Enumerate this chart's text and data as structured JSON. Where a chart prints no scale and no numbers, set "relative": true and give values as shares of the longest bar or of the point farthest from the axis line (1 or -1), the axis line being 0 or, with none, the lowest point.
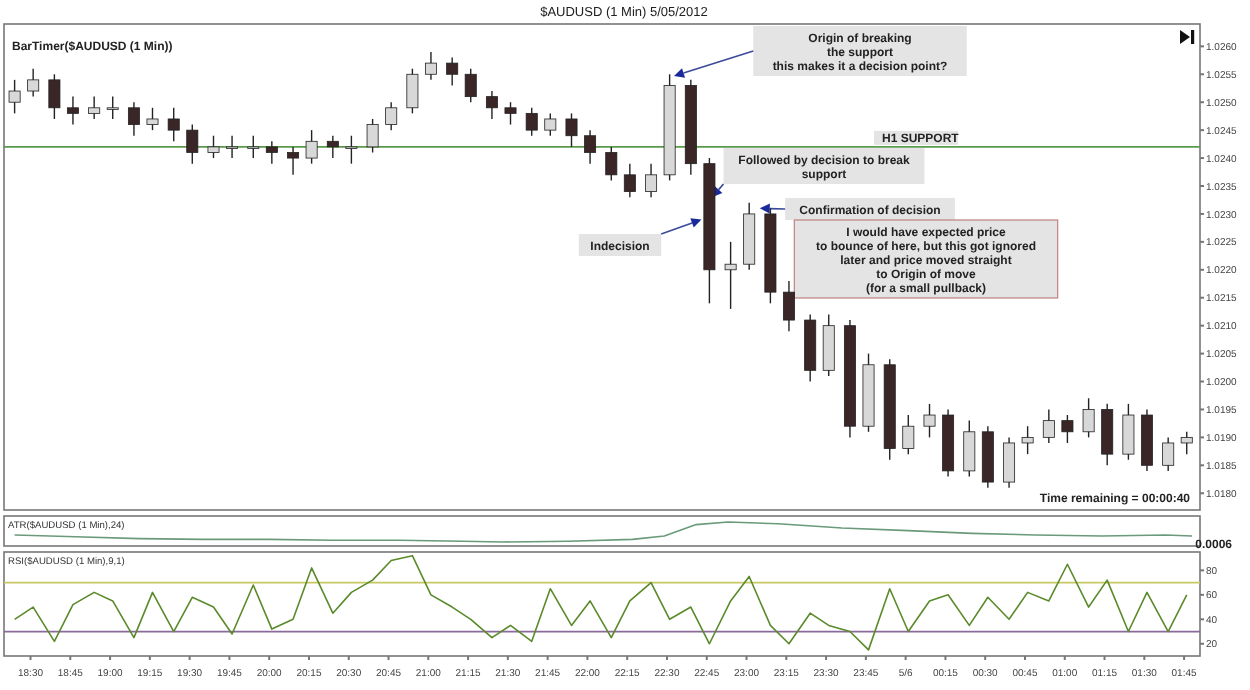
{
  "chart_data": [
    {
      "type": "candlestick",
      "title": "$AUDUSD (1 Min)  5/05/2012",
      "x": [
        "2012-05-05T18:24",
        "2012-05-05T18:31",
        "2012-05-05T18:39",
        "2012-05-05T18:46",
        "2012-05-05T18:54",
        "2012-05-05T19:01",
        "2012-05-05T19:09",
        "2012-05-05T19:16",
        "2012-05-05T19:24",
        "2012-05-05T19:31",
        "2012-05-05T19:39",
        "2012-05-05T19:46",
        "2012-05-05T19:54",
        "2012-05-05T20:01",
        "2012-05-05T20:09",
        "2012-05-05T20:16",
        "2012-05-05T20:24",
        "2012-05-05T20:31",
        "2012-05-05T20:39",
        "2012-05-05T20:46",
        "2012-05-05T20:54",
        "2012-05-05T21:01",
        "2012-05-05T21:09",
        "2012-05-05T21:16",
        "2012-05-05T21:24",
        "2012-05-05T21:31",
        "2012-05-05T21:39",
        "2012-05-05T21:46",
        "2012-05-05T21:54",
        "2012-05-05T22:01",
        "2012-05-05T22:09",
        "2012-05-05T22:16",
        "2012-05-05T22:24",
        "2012-05-05T22:31",
        "2012-05-05T22:39",
        "2012-05-05T22:46",
        "2012-05-05T22:54",
        "2012-05-05T23:01",
        "2012-05-05T23:09",
        "2012-05-05T23:16",
        "2012-05-05T23:24",
        "2012-05-05T23:31",
        "2012-05-05T23:39",
        "2012-05-05T23:46",
        "2012-05-05T23:54",
        "2012-05-06T00:01",
        "2012-05-06T00:09",
        "2012-05-06T00:16",
        "2012-05-06T00:24",
        "2012-05-06T00:31",
        "2012-05-06T00:39",
        "2012-05-06T00:46",
        "2012-05-06T00:54",
        "2012-05-06T01:01",
        "2012-05-06T01:09",
        "2012-05-06T01:16",
        "2012-05-06T01:24",
        "2012-05-06T01:31",
        "2012-05-06T01:39",
        "2012-05-06T01:46"
      ],
      "ohlc": [
        [
          1.025,
          1.0254,
          1.0248,
          1.0252
        ],
        [
          1.0252,
          1.0256,
          1.0251,
          1.0254
        ],
        [
          1.0254,
          1.0255,
          1.0247,
          1.0249
        ],
        [
          1.0249,
          1.0251,
          1.0246,
          1.0248
        ],
        [
          1.0248,
          1.0251,
          1.0247,
          1.0249
        ],
        [
          1.0249,
          1.0251,
          1.0247,
          1.0249
        ],
        [
          1.0249,
          1.025,
          1.0244,
          1.0246
        ],
        [
          1.0246,
          1.0249,
          1.0245,
          1.0247
        ],
        [
          1.0247,
          1.0249,
          1.0243,
          1.0245
        ],
        [
          1.0245,
          1.0246,
          1.0239,
          1.0241
        ],
        [
          1.0241,
          1.0244,
          1.024,
          1.0242
        ],
        [
          1.0242,
          1.0244,
          1.024,
          1.0242
        ],
        [
          1.0242,
          1.0244,
          1.024,
          1.0242
        ],
        [
          1.0242,
          1.0243,
          1.0239,
          1.0241
        ],
        [
          1.0241,
          1.0242,
          1.0237,
          1.024
        ],
        [
          1.024,
          1.0245,
          1.0239,
          1.0243
        ],
        [
          1.0243,
          1.0244,
          1.024,
          1.0242
        ],
        [
          1.0242,
          1.0244,
          1.0239,
          1.0242
        ],
        [
          1.0242,
          1.0247,
          1.0241,
          1.0246
        ],
        [
          1.0246,
          1.025,
          1.0245,
          1.0249
        ],
        [
          1.0249,
          1.0256,
          1.0248,
          1.0255
        ],
        [
          1.0255,
          1.0259,
          1.0254,
          1.0257
        ],
        [
          1.0257,
          1.0258,
          1.0253,
          1.0255
        ],
        [
          1.0255,
          1.0256,
          1.025,
          1.0251
        ],
        [
          1.0251,
          1.0252,
          1.0247,
          1.0249
        ],
        [
          1.0249,
          1.025,
          1.0246,
          1.0248
        ],
        [
          1.0248,
          1.0249,
          1.0244,
          1.0245
        ],
        [
          1.0245,
          1.0248,
          1.0244,
          1.0247
        ],
        [
          1.0247,
          1.0248,
          1.0242,
          1.0244
        ],
        [
          1.0244,
          1.0245,
          1.0239,
          1.0241
        ],
        [
          1.0241,
          1.0242,
          1.0236,
          1.0237
        ],
        [
          1.0237,
          1.0239,
          1.0233,
          1.0234
        ],
        [
          1.0234,
          1.0239,
          1.0233,
          1.0237
        ],
        [
          1.0237,
          1.0255,
          1.0236,
          1.0253
        ],
        [
          1.0253,
          1.0254,
          1.0237,
          1.0239
        ],
        [
          1.0239,
          1.024,
          1.0214,
          1.022
        ],
        [
          1.022,
          1.0225,
          1.0213,
          1.0221
        ],
        [
          1.0221,
          1.0232,
          1.022,
          1.023
        ],
        [
          1.023,
          1.0231,
          1.0214,
          1.0216
        ],
        [
          1.0216,
          1.0218,
          1.0209,
          1.0211
        ],
        [
          1.0211,
          1.0212,
          1.02,
          1.0202
        ],
        [
          1.0202,
          1.0212,
          1.0201,
          1.021
        ],
        [
          1.021,
          1.0211,
          1.019,
          1.0192
        ],
        [
          1.0192,
          1.0205,
          1.0191,
          1.0203
        ],
        [
          1.0203,
          1.0204,
          1.0186,
          1.0188
        ],
        [
          1.0188,
          1.0194,
          1.0187,
          1.0192
        ],
        [
          1.0192,
          1.0196,
          1.019,
          1.0194
        ],
        [
          1.0194,
          1.0195,
          1.0183,
          1.0184
        ],
        [
          1.0184,
          1.0193,
          1.0183,
          1.0191
        ],
        [
          1.0191,
          1.0192,
          1.0181,
          1.0182
        ],
        [
          1.0182,
          1.019,
          1.0181,
          1.0189
        ],
        [
          1.0189,
          1.0192,
          1.0187,
          1.019
        ],
        [
          1.019,
          1.0195,
          1.0189,
          1.0193
        ],
        [
          1.0193,
          1.0194,
          1.0189,
          1.0191
        ],
        [
          1.0191,
          1.0197,
          1.019,
          1.0195
        ],
        [
          1.0195,
          1.0196,
          1.0185,
          1.0187
        ],
        [
          1.0187,
          1.0196,
          1.0186,
          1.0194
        ],
        [
          1.0194,
          1.0195,
          1.0184,
          1.0185
        ],
        [
          1.0185,
          1.019,
          1.0184,
          1.0189
        ],
        [
          1.0189,
          1.0191,
          1.0187,
          1.019
        ]
      ],
      "xlim": [
        "2012-05-05T18:20",
        "2012-05-06T01:51"
      ],
      "ylim": [
        1.0177,
        1.0264
      ],
      "yticks": [
        {
          "value": 1.026,
          "label": "1.0260"
        },
        {
          "value": 1.0255,
          "label": "1.0255"
        },
        {
          "value": 1.025,
          "label": "1.0250"
        },
        {
          "value": 1.0245,
          "label": "1.0245"
        },
        {
          "value": 1.024,
          "label": "1.0240"
        },
        {
          "value": 1.0235,
          "label": "1.0235"
        },
        {
          "value": 1.023,
          "label": "1.0230"
        },
        {
          "value": 1.0225,
          "label": "1.0225"
        },
        {
          "value": 1.022,
          "label": "1.0220"
        },
        {
          "value": 1.0215,
          "label": "1.0215"
        },
        {
          "value": 1.021,
          "label": "1.0210"
        },
        {
          "value": 1.0205,
          "label": "1.0205"
        },
        {
          "value": 1.02,
          "label": "1.0200"
        },
        {
          "value": 1.0195,
          "label": "1.0195"
        },
        {
          "value": 1.019,
          "label": "1.0190"
        },
        {
          "value": 1.0185,
          "label": "1.0185"
        },
        {
          "value": 1.018,
          "label": "1.0180"
        }
      ],
      "tick_labels": "y",
      "ref_lines": [
        {
          "axis": "y",
          "value": 1.0242,
          "label": "H1 SUPPORT",
          "color": "#5a9a4a"
        }
      ],
      "annotations": [
        "BarTimer($AUDUSD (1 Min))",
        "Origin of breaking\nthe support\nthis makes it a decision point?",
        {
          "text": "Followed by decision to break\nsupport",
          "x": "2012-05-05T22:47",
          "y": 1.0233
        },
        {
          "text": "Indecision",
          "x": "2012-05-05T22:43",
          "y": 1.0229
        },
        {
          "text": "Confirmation of decision",
          "x": "2012-05-05T23:05",
          "y": 1.0231
        },
        "I would have expected price\nto bounce of here, but this got ignored\nlater and price moved straight\nto Origin of move\n(for a small pullback)",
        "Time remaining = 00:00:40"
      ]
    },
    {
      "type": "line",
      "title": "ATR($AUDUSD (1 Min),24)",
      "relative": true,
      "xlim": [
        "2012-05-05T18:20",
        "2012-05-06T01:51"
      ],
      "tick_labels": false,
      "series": [
        {
          "color": "#6a9a7a",
          "x": [
            "2012-05-05T18:24",
            "2012-05-05T18:47",
            "2012-05-05T19:11",
            "2012-05-05T19:35",
            "2012-05-05T20:00",
            "2012-05-05T20:24",
            "2012-05-05T20:49",
            "2012-05-05T21:13",
            "2012-05-05T21:28",
            "2012-05-05T21:53",
            "2012-05-05T22:17",
            "2012-05-05T22:29",
            "2012-05-05T22:41",
            "2012-05-05T22:53",
            "2012-05-05T23:12",
            "2012-05-05T23:36",
            "2012-05-06T00:01",
            "2012-05-06T00:25",
            "2012-05-06T00:49",
            "2012-05-06T01:14",
            "2012-05-06T01:38",
            "2012-05-06T01:48"
          ],
          "values": [
            0.35,
            0.26,
            0.17,
            0.13,
            0.13,
            0.09,
            0.09,
            0.04,
            0,
            0.04,
            0.13,
            0.3,
            0.87,
            1,
            0.91,
            0.7,
            0.57,
            0.43,
            0.35,
            0.3,
            0.35,
            0.3
          ]
        }
      ],
      "annotations": [
        "0.0006"
      ]
    },
    {
      "type": "line",
      "title": "RSI($AUDUSD (1 Min),9,1)",
      "xlim": [
        "2012-05-05T18:20",
        "2012-05-06T01:51"
      ],
      "ylim": [
        10,
        95
      ],
      "yticks": [
        20,
        40,
        60,
        80
      ],
      "xticks": [
        {
          "value": "2012-05-05T18:30",
          "label": "18:30"
        },
        {
          "value": "2012-05-05T18:45",
          "label": "18:45"
        },
        {
          "value": "2012-05-05T19:00",
          "label": "19:00"
        },
        {
          "value": "2012-05-05T19:15",
          "label": "19:15"
        },
        {
          "value": "2012-05-05T19:30",
          "label": "19:30"
        },
        {
          "value": "2012-05-05T19:45",
          "label": "19:45"
        },
        {
          "value": "2012-05-05T20:00",
          "label": "20:00"
        },
        {
          "value": "2012-05-05T20:15",
          "label": "20:15"
        },
        {
          "value": "2012-05-05T20:30",
          "label": "20:30"
        },
        {
          "value": "2012-05-05T20:45",
          "label": "20:45"
        },
        {
          "value": "2012-05-05T21:00",
          "label": "21:00"
        },
        {
          "value": "2012-05-05T21:15",
          "label": "21:15"
        },
        {
          "value": "2012-05-05T21:30",
          "label": "21:30"
        },
        {
          "value": "2012-05-05T21:45",
          "label": "21:45"
        },
        {
          "value": "2012-05-05T22:00",
          "label": "22:00"
        },
        {
          "value": "2012-05-05T22:15",
          "label": "22:15"
        },
        {
          "value": "2012-05-05T22:30",
          "label": "22:30"
        },
        {
          "value": "2012-05-05T22:45",
          "label": "22:45"
        },
        {
          "value": "2012-05-05T23:00",
          "label": "23:00"
        },
        {
          "value": "2012-05-05T23:15",
          "label": "23:15"
        },
        {
          "value": "2012-05-05T23:30",
          "label": "23:30"
        },
        {
          "value": "2012-05-05T23:45",
          "label": "23:45"
        },
        {
          "value": "2012-05-06T00:00",
          "label": "5/6"
        },
        {
          "value": "2012-05-06T00:15",
          "label": "00:15"
        },
        {
          "value": "2012-05-06T00:30",
          "label": "00:30"
        },
        {
          "value": "2012-05-06T00:45",
          "label": "00:45"
        },
        {
          "value": "2012-05-06T01:00",
          "label": "01:00"
        },
        {
          "value": "2012-05-06T01:15",
          "label": "01:15"
        },
        {
          "value": "2012-05-06T01:30",
          "label": "01:30"
        },
        {
          "value": "2012-05-06T01:45",
          "label": "01:45"
        }
      ],
      "ref_lines": [
        {
          "axis": "y",
          "value": 70,
          "color": "#c8c864"
        },
        {
          "axis": "y",
          "value": 30,
          "color": "#8a6a9a"
        }
      ],
      "series": [
        {
          "color": "#5a8a2a",
          "x": [
            "2012-05-05T18:24",
            "2012-05-05T18:31",
            "2012-05-05T18:39",
            "2012-05-05T18:46",
            "2012-05-05T18:54",
            "2012-05-05T19:01",
            "2012-05-05T19:09",
            "2012-05-05T19:16",
            "2012-05-05T19:24",
            "2012-05-05T19:31",
            "2012-05-05T19:39",
            "2012-05-05T19:46",
            "2012-05-05T19:54",
            "2012-05-05T20:01",
            "2012-05-05T20:09",
            "2012-05-05T20:16",
            "2012-05-05T20:24",
            "2012-05-05T20:31",
            "2012-05-05T20:39",
            "2012-05-05T20:46",
            "2012-05-05T20:54",
            "2012-05-05T21:01",
            "2012-05-05T21:09",
            "2012-05-05T21:16",
            "2012-05-05T21:24",
            "2012-05-05T21:31",
            "2012-05-05T21:39",
            "2012-05-05T21:46",
            "2012-05-05T21:54",
            "2012-05-05T22:01",
            "2012-05-05T22:09",
            "2012-05-05T22:16",
            "2012-05-05T22:24",
            "2012-05-05T22:31",
            "2012-05-05T22:39",
            "2012-05-05T22:46",
            "2012-05-05T22:54",
            "2012-05-05T23:01",
            "2012-05-05T23:09",
            "2012-05-05T23:16",
            "2012-05-05T23:24",
            "2012-05-05T23:31",
            "2012-05-05T23:39",
            "2012-05-05T23:46",
            "2012-05-05T23:54",
            "2012-05-06T00:01",
            "2012-05-06T00:09",
            "2012-05-06T00:16",
            "2012-05-06T00:24",
            "2012-05-06T00:31",
            "2012-05-06T00:39",
            "2012-05-06T00:46",
            "2012-05-06T00:54",
            "2012-05-06T01:01",
            "2012-05-06T01:09",
            "2012-05-06T01:16",
            "2012-05-06T01:24",
            "2012-05-06T01:31",
            "2012-05-06T01:39",
            "2012-05-06T01:46"
          ],
          "values": [
            40,
            50,
            22,
            52,
            62,
            55,
            25,
            62,
            30,
            58,
            50,
            28,
            68,
            32,
            40,
            82,
            45,
            62,
            72,
            88,
            92,
            60,
            50,
            40,
            25,
            35,
            22,
            65,
            35,
            55,
            25,
            55,
            70,
            40,
            50,
            20,
            55,
            75,
            35,
            20,
            45,
            35,
            30,
            15,
            65,
            30,
            55,
            60,
            35,
            58,
            40,
            62,
            55,
            85,
            50,
            72,
            30,
            62,
            30,
            60
          ]
        }
      ]
    }
  ]
}
